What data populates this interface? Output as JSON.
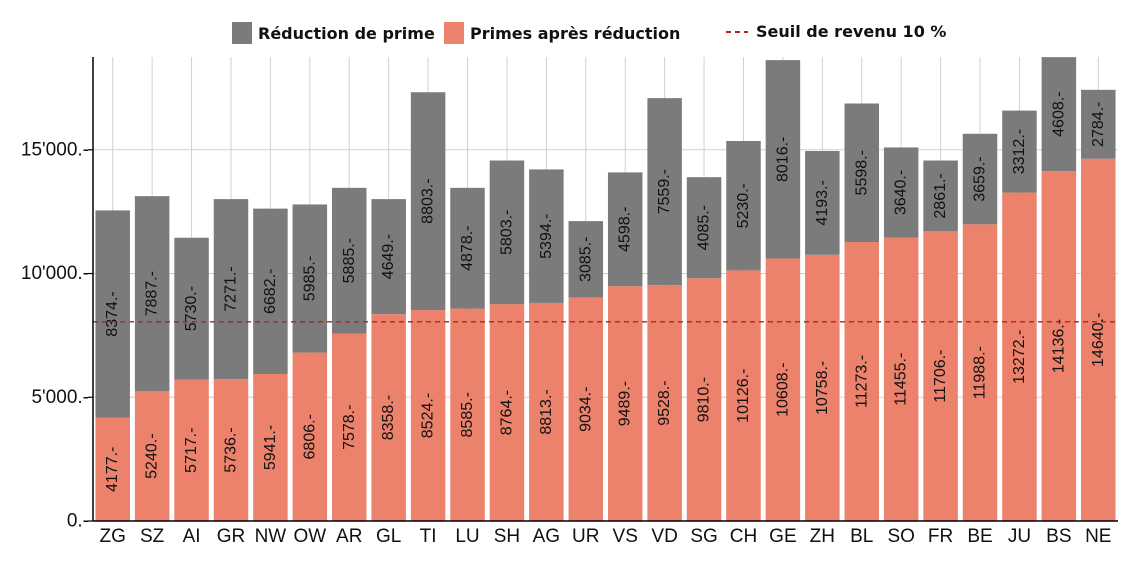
{
  "chart_data": {
    "type": "bar",
    "stacked": true,
    "title": "",
    "xlabel": "",
    "ylabel": "",
    "ylim": [
      0,
      18750
    ],
    "grid": true,
    "legend_position": "top",
    "yticks": [
      0,
      5000,
      10000,
      15000
    ],
    "ytick_labels": [
      "0.-",
      "5'000.-",
      "10'000.-",
      "15'000.-"
    ],
    "categories": [
      "ZG",
      "SZ",
      "AI",
      "GR",
      "NW",
      "OW",
      "AR",
      "GL",
      "TI",
      "LU",
      "SH",
      "AG",
      "UR",
      "VS",
      "VD",
      "SG",
      "CH",
      "GE",
      "ZH",
      "BL",
      "SO",
      "FR",
      "BE",
      "JU",
      "BS",
      "NE"
    ],
    "series": [
      {
        "name": "Primes après réduction",
        "color": "#ec826b",
        "values": [
          4177,
          5240,
          5717,
          5736,
          5941,
          6806,
          7578,
          8358,
          8524,
          8585,
          8764,
          8813,
          9034,
          9489,
          9528,
          9810,
          10126,
          10608,
          10758,
          11273,
          11455,
          11706,
          11988,
          13272,
          14136,
          14640
        ],
        "labels": [
          "4177.-",
          "5240.-",
          "5717.-",
          "5736.-",
          "5941.-",
          "6806.-",
          "7578.-",
          "8358.-",
          "8524.-",
          "8585.-",
          "8764.-",
          "8813.-",
          "9034.-",
          "9489.-",
          "9528.-",
          "9810.-",
          "10126.-",
          "10608.-",
          "10758.-",
          "11273.-",
          "11455.-",
          "11706.-",
          "11988.-",
          "13272.-",
          "14136.-",
          "14640.-"
        ]
      },
      {
        "name": "Réduction de prime",
        "color": "#7b7b7b",
        "values": [
          8374,
          7887,
          5730,
          7271,
          6682,
          5985,
          5885,
          4649,
          8803,
          4878,
          5803,
          5394,
          3085,
          4598,
          7559,
          4085,
          5230,
          8016,
          4193,
          5598,
          3640,
          2861,
          3659,
          3312,
          4608,
          2784
        ],
        "labels": [
          "8374.-",
          "7887.-",
          "5730.-",
          "7271.-",
          "6682.-",
          "5985.-",
          "5885.-",
          "4649.-",
          "8803.-",
          "4878.-",
          "5803.-",
          "5394.-",
          "3085.-",
          "4598.-",
          "7559.-",
          "4085.-",
          "5230.-",
          "8016.-",
          "4193.-",
          "5598.-",
          "3640.-",
          "2861.-",
          "3659.-",
          "3312.-",
          "4608.-",
          "2784.-"
        ]
      }
    ],
    "reference_line": {
      "name": "Seuil de revenu 10 %",
      "value": 8050,
      "color": "#b22222",
      "style": "dashed"
    },
    "legend": [
      {
        "label": "Réduction de prime",
        "kind": "box",
        "color": "#7b7b7b"
      },
      {
        "label": "Primes après réduction",
        "kind": "box",
        "color": "#ec826b"
      },
      {
        "label": "Seuil de revenu 10 %",
        "kind": "dash",
        "color": "#b22222"
      }
    ]
  }
}
